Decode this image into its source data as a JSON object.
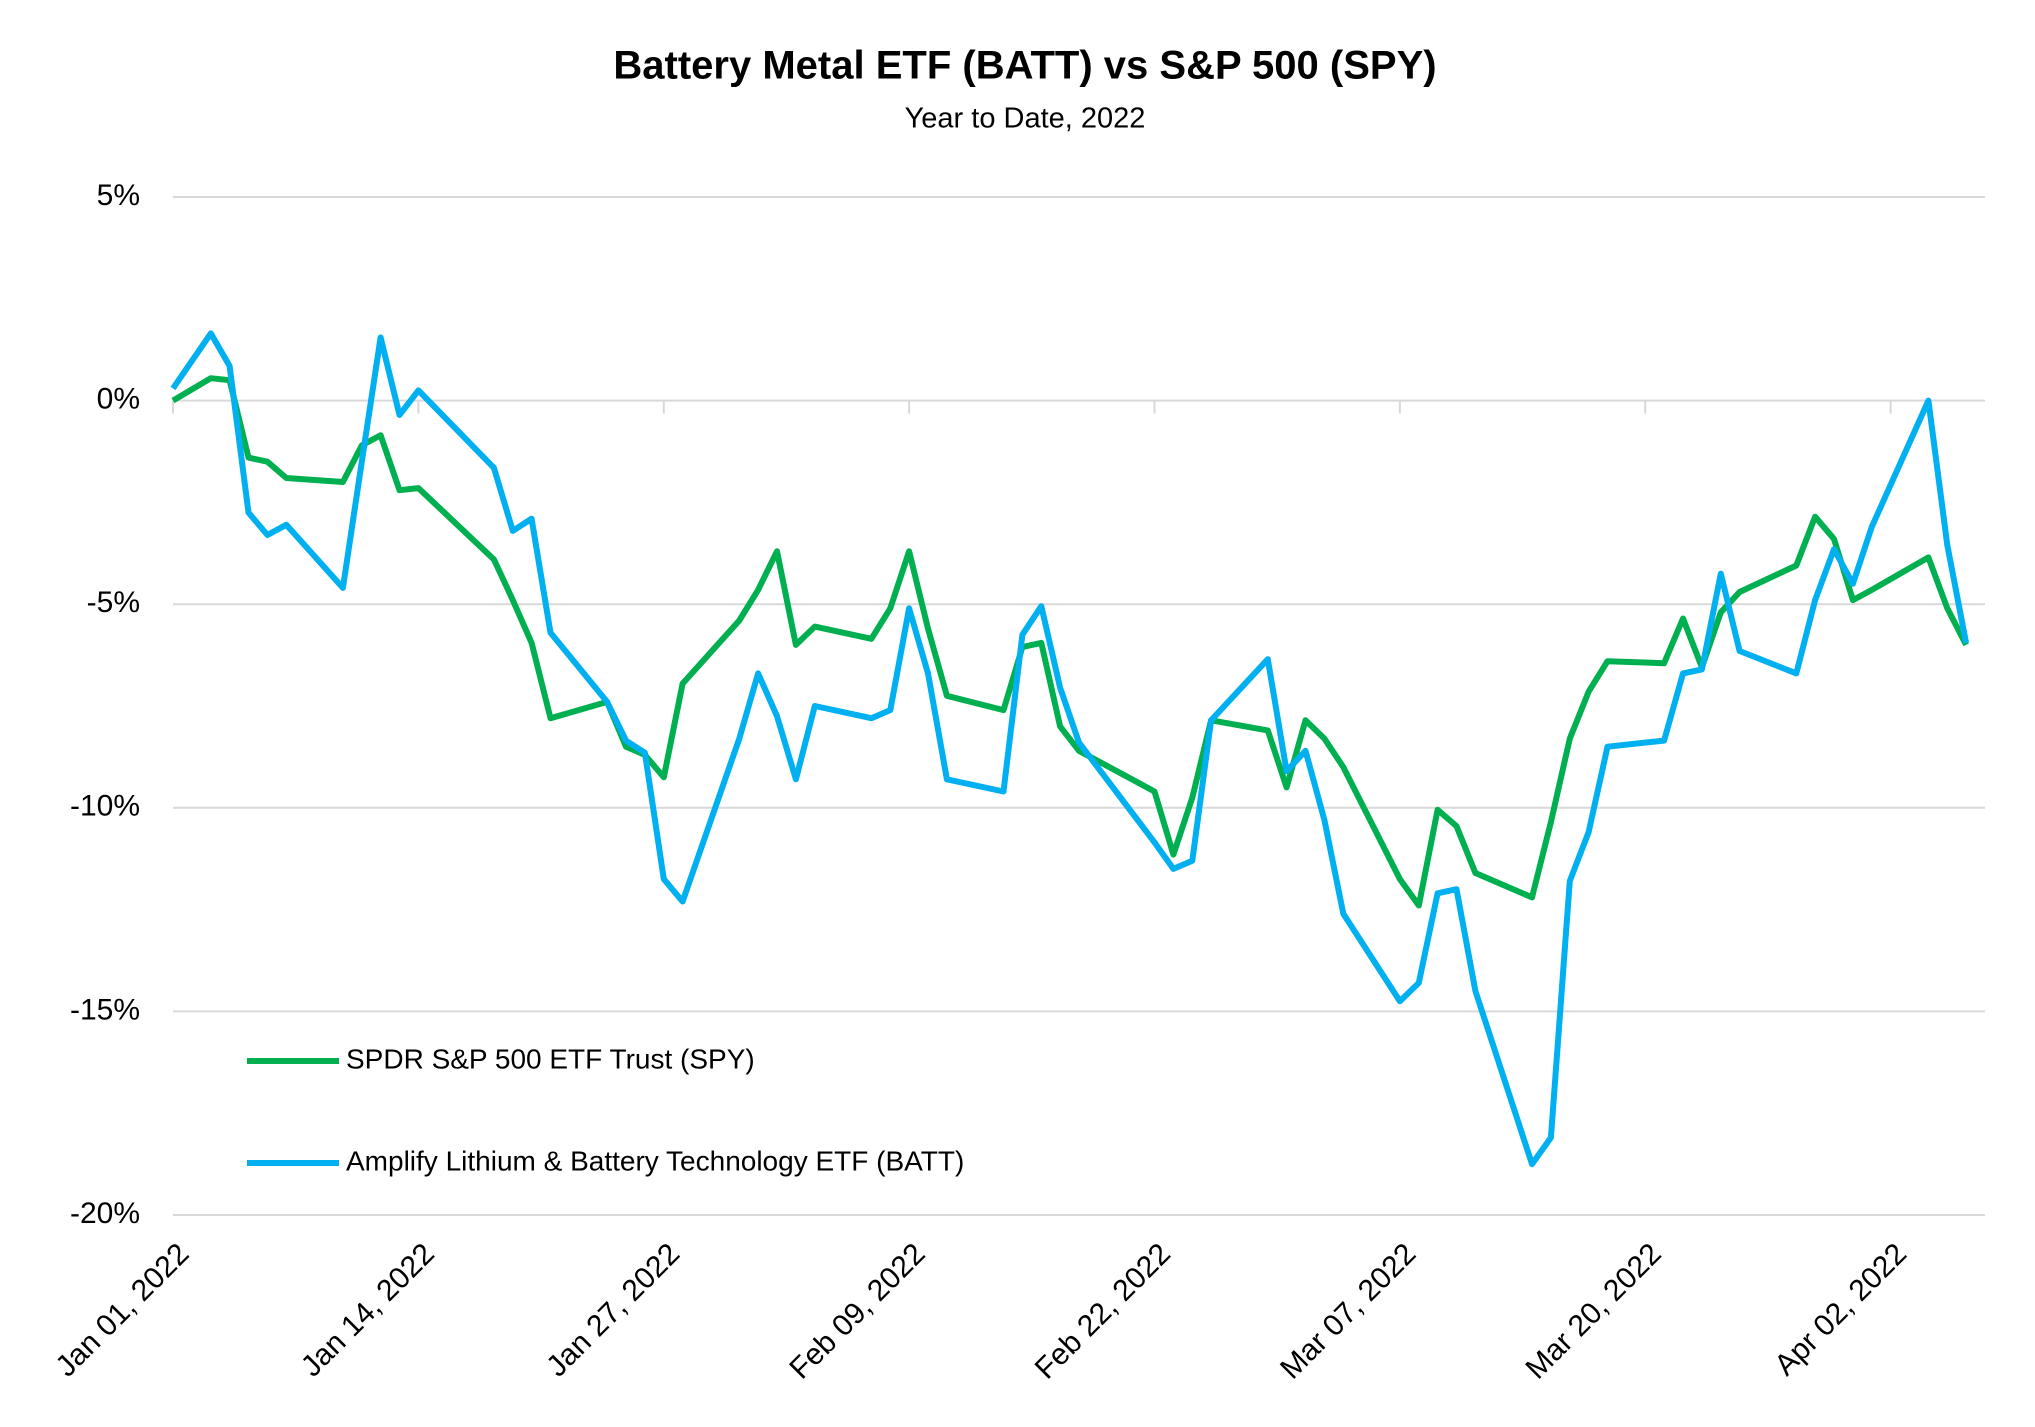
{
  "chart_data": {
    "type": "line",
    "title": "Battery Metal ETF (BATT) vs S&P 500 (SPY)",
    "subtitle": "Year to Date, 2022",
    "x": [
      "2022-01-01",
      "2022-01-03",
      "2022-01-04",
      "2022-01-05",
      "2022-01-06",
      "2022-01-07",
      "2022-01-10",
      "2022-01-11",
      "2022-01-12",
      "2022-01-13",
      "2022-01-14",
      "2022-01-18",
      "2022-01-19",
      "2022-01-20",
      "2022-01-21",
      "2022-01-24",
      "2022-01-25",
      "2022-01-26",
      "2022-01-27",
      "2022-01-28",
      "2022-01-31",
      "2022-02-01",
      "2022-02-02",
      "2022-02-03",
      "2022-02-04",
      "2022-02-07",
      "2022-02-08",
      "2022-02-09",
      "2022-02-10",
      "2022-02-11",
      "2022-02-14",
      "2022-02-15",
      "2022-02-16",
      "2022-02-17",
      "2022-02-18",
      "2022-02-22",
      "2022-02-23",
      "2022-02-24",
      "2022-02-25",
      "2022-02-28",
      "2022-03-01",
      "2022-03-02",
      "2022-03-03",
      "2022-03-04",
      "2022-03-07",
      "2022-03-08",
      "2022-03-09",
      "2022-03-10",
      "2022-03-11",
      "2022-03-14",
      "2022-03-15",
      "2022-03-16",
      "2022-03-17",
      "2022-03-18",
      "2022-03-21",
      "2022-03-22",
      "2022-03-23",
      "2022-03-24",
      "2022-03-25",
      "2022-03-28",
      "2022-03-29",
      "2022-03-30",
      "2022-03-31",
      "2022-04-01",
      "2022-04-04",
      "2022-04-05",
      "2022-04-06"
    ],
    "series": [
      {
        "name": "SPDR S&P 500 ETF Trust (SPY)",
        "color": "#00b050",
        "values": [
          0.0,
          0.55,
          0.5,
          -1.4,
          -1.5,
          -1.9,
          -2.0,
          -1.1,
          -0.85,
          -2.2,
          -2.15,
          -3.9,
          -4.9,
          -5.95,
          -7.8,
          -7.4,
          -8.5,
          -8.7,
          -9.25,
          -6.95,
          -5.4,
          -4.65,
          -3.7,
          -6.0,
          -5.55,
          -5.85,
          -5.1,
          -3.7,
          -5.6,
          -7.25,
          -7.6,
          -6.05,
          -5.95,
          -8.0,
          -8.6,
          -9.6,
          -11.15,
          -9.75,
          -7.85,
          -8.1,
          -9.5,
          -7.85,
          -8.3,
          -9.0,
          -11.75,
          -12.4,
          -10.05,
          -10.45,
          -11.6,
          -12.2,
          -10.35,
          -8.3,
          -7.15,
          -6.4,
          -6.45,
          -5.35,
          -6.55,
          -5.2,
          -4.7,
          -4.05,
          -2.85,
          -3.4,
          -4.9,
          -4.65,
          -3.85,
          -5.1,
          -6.0
        ]
      },
      {
        "name": "Amplify Lithium & Battery Technology ETF (BATT)",
        "color": "#00b0f0",
        "values": [
          0.3,
          1.65,
          0.85,
          -2.75,
          -3.3,
          -3.05,
          -4.6,
          -1.5,
          1.55,
          -0.35,
          0.25,
          -1.65,
          -3.2,
          -2.9,
          -5.7,
          -7.4,
          -8.35,
          -8.65,
          -11.75,
          -12.3,
          -8.3,
          -6.7,
          -7.75,
          -9.3,
          -7.5,
          -7.8,
          -7.6,
          -5.1,
          -6.7,
          -9.3,
          -9.6,
          -5.75,
          -5.05,
          -7.05,
          -8.4,
          -10.85,
          -11.5,
          -11.3,
          -7.85,
          -6.35,
          -9.1,
          -8.6,
          -10.3,
          -12.6,
          -14.75,
          -14.3,
          -12.1,
          -12.0,
          -14.5,
          -18.75,
          -18.1,
          -11.8,
          -10.6,
          -8.5,
          -8.35,
          -6.7,
          -6.6,
          -4.25,
          -6.15,
          -6.7,
          -4.9,
          -3.65,
          -4.5,
          -3.1,
          0.0,
          -3.55,
          -5.95
        ]
      }
    ],
    "xlim": [
      "2022-01-01",
      "2022-04-07"
    ],
    "xticks": [
      {
        "value": "2022-01-01",
        "label": "Jan 01, 2022"
      },
      {
        "value": "2022-01-14",
        "label": "Jan 14, 2022"
      },
      {
        "value": "2022-01-27",
        "label": "Jan 27, 2022"
      },
      {
        "value": "2022-02-09",
        "label": "Feb 09, 2022"
      },
      {
        "value": "2022-02-22",
        "label": "Feb 22, 2022"
      },
      {
        "value": "2022-03-07",
        "label": "Mar 07, 2022"
      },
      {
        "value": "2022-03-20",
        "label": "Mar 20, 2022"
      },
      {
        "value": "2022-04-02",
        "label": "Apr 02, 2022"
      }
    ],
    "ylim": [
      -20,
      5
    ],
    "yticks": [
      {
        "value": -20,
        "label": "-20%"
      },
      {
        "value": -15,
        "label": "-15%"
      },
      {
        "value": -10,
        "label": "-10%"
      },
      {
        "value": -5,
        "label": "-5%"
      },
      {
        "value": 0,
        "label": "0%"
      },
      {
        "value": 5,
        "label": "5%"
      }
    ],
    "grid": true,
    "legend": "lower left"
  }
}
